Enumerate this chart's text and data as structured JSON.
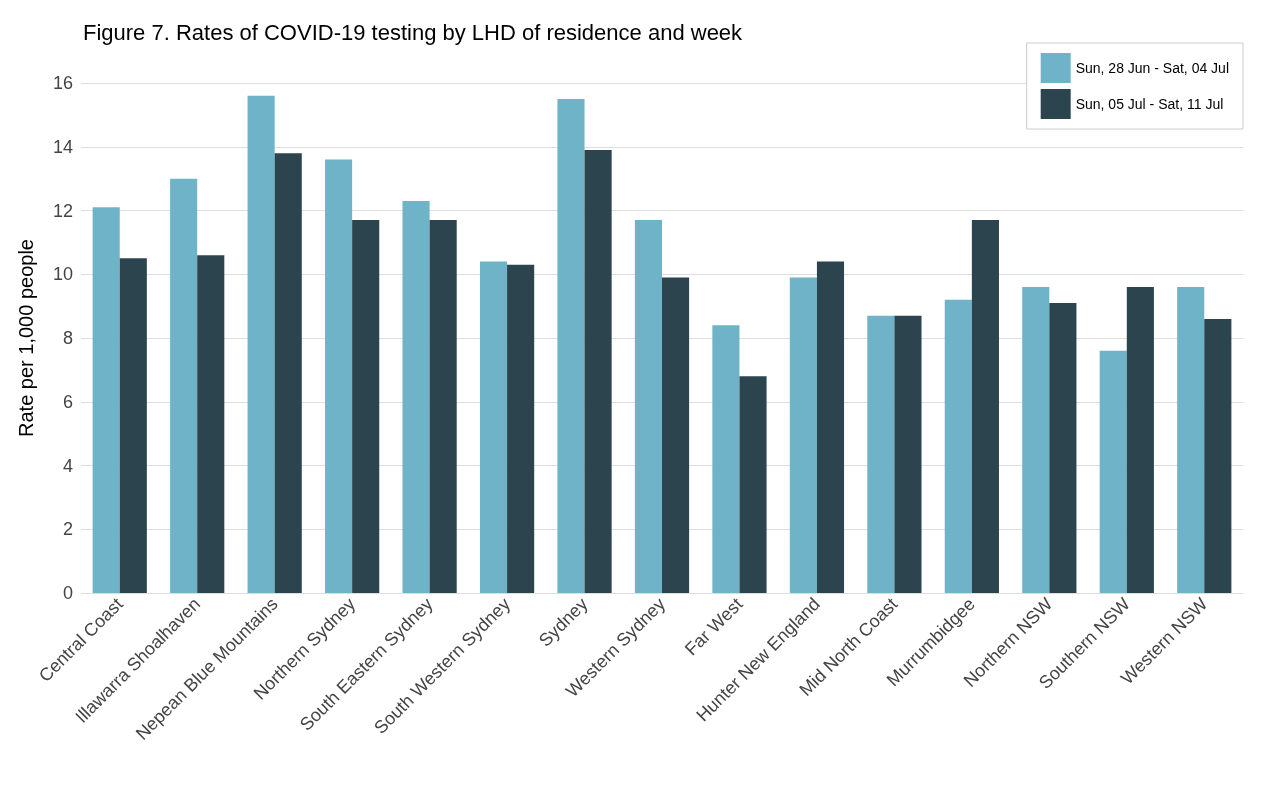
{
  "chart_data": {
    "type": "bar",
    "title": "Figure 7. Rates of COVID-19 testing by LHD of residence and week",
    "ylabel": "Rate per 1,000 people",
    "categories": [
      "Central Coast",
      "Illawarra Shoalhaven",
      "Nepean Blue Mountains",
      "Northern Sydney",
      "South Eastern Sydney",
      "South Western Sydney",
      "Sydney",
      "Western Sydney",
      "Far West",
      "Hunter New England",
      "Mid North Coast",
      "Murrumbidgee",
      "Northern NSW",
      "Southern NSW",
      "Western NSW"
    ],
    "series": [
      {
        "name": "Sun, 28 Jun - Sat, 04 Jul",
        "color": "#6fb3c8",
        "values": [
          12.1,
          13.0,
          15.6,
          13.6,
          12.3,
          10.4,
          15.5,
          11.7,
          8.4,
          9.9,
          8.7,
          9.2,
          9.6,
          7.6,
          9.6
        ]
      },
      {
        "name": "Sun, 05 Jul - Sat, 11 Jul",
        "color": "#2c444e",
        "values": [
          10.5,
          10.6,
          13.8,
          11.7,
          11.7,
          10.3,
          13.9,
          9.9,
          6.8,
          10.4,
          8.7,
          11.7,
          9.1,
          9.6,
          8.6
        ]
      }
    ],
    "ylim": [
      0,
      16
    ],
    "yticks": [
      0,
      2,
      4,
      6,
      8,
      10,
      12,
      14,
      16
    ],
    "grid": "y",
    "legend": "top right"
  }
}
